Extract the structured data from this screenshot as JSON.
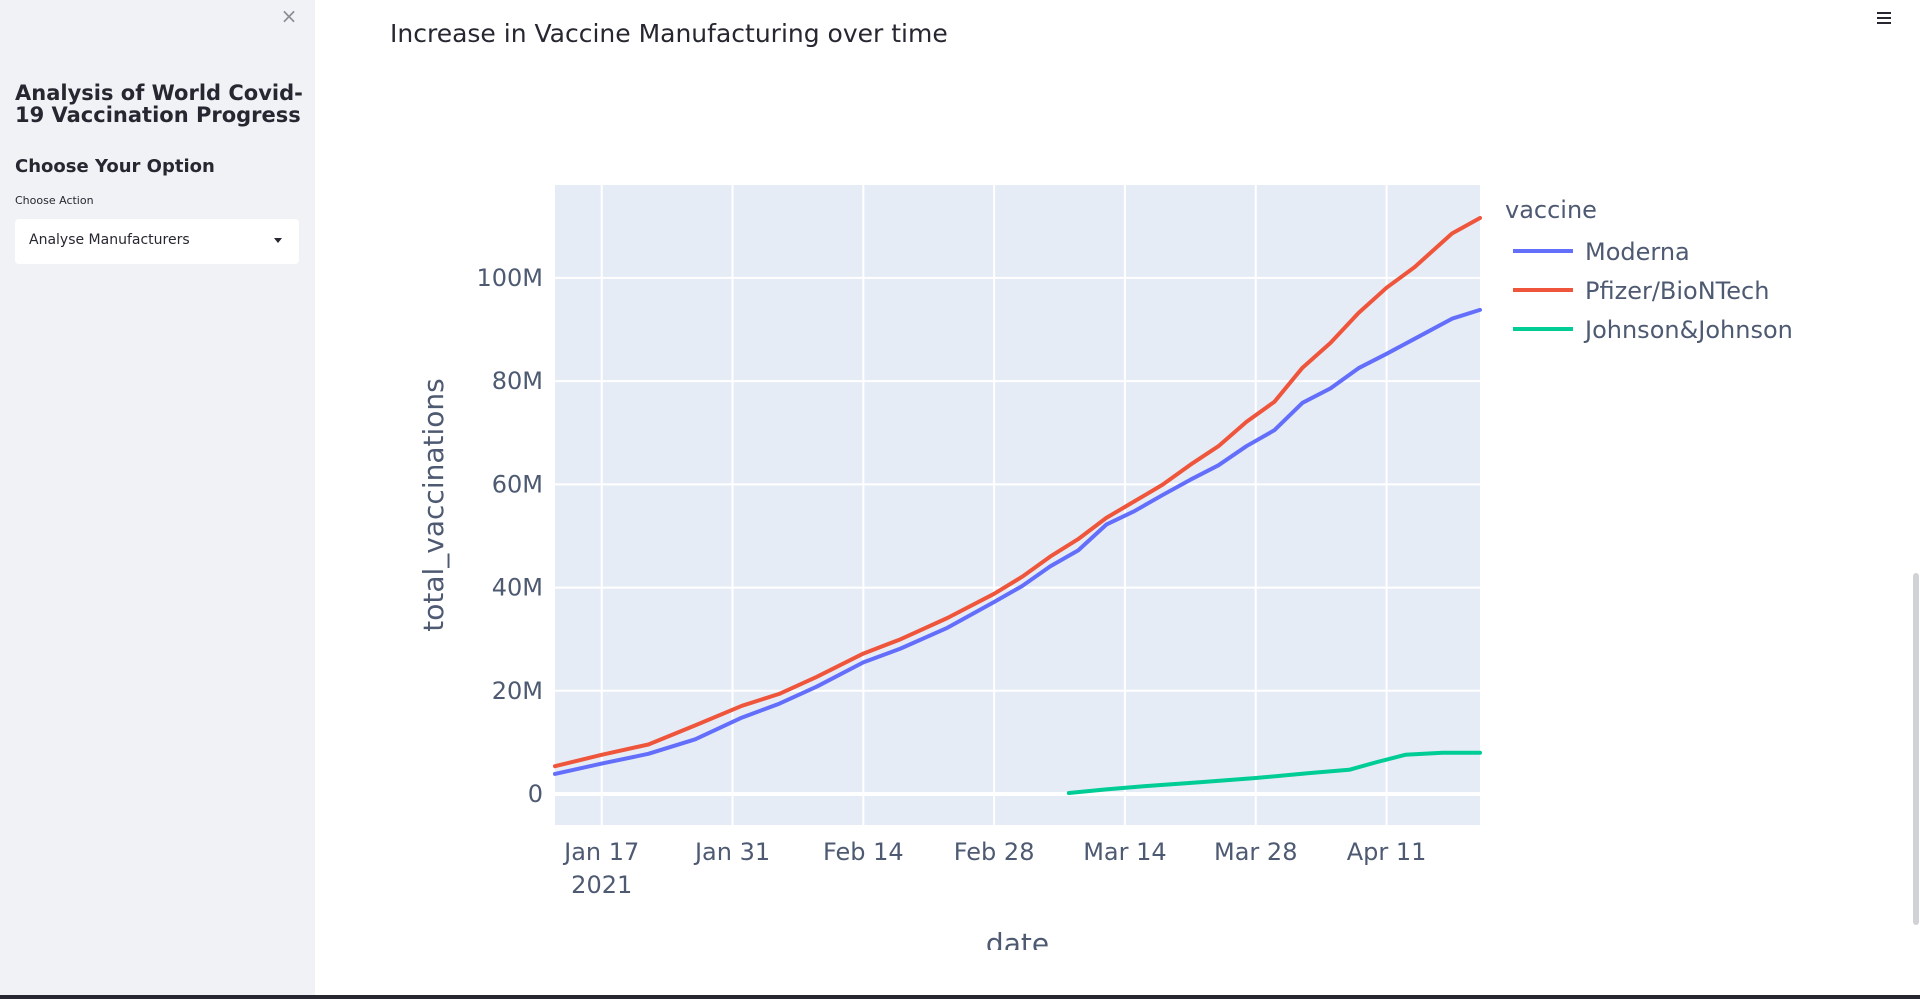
{
  "sidebar": {
    "title": "Analysis of World Covid-19 Vaccination Progress",
    "subheader": "Choose Your Option",
    "select_label": "Choose Action",
    "select_value": "Analyse Manufacturers"
  },
  "main": {
    "title": "Increase in Vaccine Manufacturing over time"
  },
  "colors": {
    "sidebar_bg": "#f0f2f6",
    "plot_bg": "#e5ecf6",
    "moderna": "#636efa",
    "pfizer": "#ef553b",
    "jnj": "#00cc96"
  },
  "icons": {
    "close": "close-icon",
    "menu": "hamburger-menu-icon",
    "caret": "chevron-down-icon"
  },
  "chart_data": {
    "type": "line",
    "xlabel": "date",
    "ylabel": "total_vaccinations",
    "legend_title": "vaccine",
    "legend_position": "right",
    "grid": true,
    "xlim": [
      "2021-01-12",
      "2021-04-21"
    ],
    "ylim": [
      -6000000,
      118000000
    ],
    "x_ticks": [
      {
        "value": "2021-01-17",
        "label": "Jan 17",
        "sublabel": "2021"
      },
      {
        "value": "2021-01-31",
        "label": "Jan 31"
      },
      {
        "value": "2021-02-14",
        "label": "Feb 14"
      },
      {
        "value": "2021-02-28",
        "label": "Feb 28"
      },
      {
        "value": "2021-03-14",
        "label": "Mar 14"
      },
      {
        "value": "2021-03-28",
        "label": "Mar 28"
      },
      {
        "value": "2021-04-11",
        "label": "Apr 11"
      }
    ],
    "y_ticks": [
      {
        "value": 0,
        "label": "0"
      },
      {
        "value": 20000000,
        "label": "20M"
      },
      {
        "value": 40000000,
        "label": "40M"
      },
      {
        "value": 60000000,
        "label": "60M"
      },
      {
        "value": 80000000,
        "label": "80M"
      },
      {
        "value": 100000000,
        "label": "100M"
      }
    ],
    "series": [
      {
        "name": "Moderna",
        "color": "#636efa",
        "points": [
          [
            "2021-01-12",
            3900000
          ],
          [
            "2021-01-17",
            5900000
          ],
          [
            "2021-01-22",
            7800000
          ],
          [
            "2021-01-27",
            10600000
          ],
          [
            "2021-02-01",
            14800000
          ],
          [
            "2021-02-05",
            17500000
          ],
          [
            "2021-02-09",
            20800000
          ],
          [
            "2021-02-14",
            25500000
          ],
          [
            "2021-02-18",
            28200000
          ],
          [
            "2021-02-23",
            32200000
          ],
          [
            "2021-02-28",
            37200000
          ],
          [
            "2021-03-03",
            40300000
          ],
          [
            "2021-03-06",
            44100000
          ],
          [
            "2021-03-09",
            47200000
          ],
          [
            "2021-03-12",
            52200000
          ],
          [
            "2021-03-15",
            54800000
          ],
          [
            "2021-03-18",
            57900000
          ],
          [
            "2021-03-21",
            60900000
          ],
          [
            "2021-03-24",
            63700000
          ],
          [
            "2021-03-27",
            67400000
          ],
          [
            "2021-03-30",
            70500000
          ],
          [
            "2021-04-02",
            75800000
          ],
          [
            "2021-04-05",
            78600000
          ],
          [
            "2021-04-08",
            82500000
          ],
          [
            "2021-04-11",
            85300000
          ],
          [
            "2021-04-14",
            88200000
          ],
          [
            "2021-04-18",
            92100000
          ],
          [
            "2021-04-21",
            93800000
          ]
        ]
      },
      {
        "name": "Pfizer/BioNTech",
        "color": "#ef553b",
        "points": [
          [
            "2021-01-12",
            5400000
          ],
          [
            "2021-01-17",
            7600000
          ],
          [
            "2021-01-22",
            9600000
          ],
          [
            "2021-01-27",
            13300000
          ],
          [
            "2021-02-01",
            17100000
          ],
          [
            "2021-02-05",
            19400000
          ],
          [
            "2021-02-09",
            22700000
          ],
          [
            "2021-02-14",
            27200000
          ],
          [
            "2021-02-18",
            30000000
          ],
          [
            "2021-02-23",
            34100000
          ],
          [
            "2021-02-28",
            38800000
          ],
          [
            "2021-03-03",
            42100000
          ],
          [
            "2021-03-06",
            46000000
          ],
          [
            "2021-03-09",
            49400000
          ],
          [
            "2021-03-12",
            53500000
          ],
          [
            "2021-03-15",
            56700000
          ],
          [
            "2021-03-18",
            59900000
          ],
          [
            "2021-03-21",
            63800000
          ],
          [
            "2021-03-24",
            67400000
          ],
          [
            "2021-03-27",
            72100000
          ],
          [
            "2021-03-30",
            76000000
          ],
          [
            "2021-04-02",
            82600000
          ],
          [
            "2021-04-05",
            87400000
          ],
          [
            "2021-04-08",
            93200000
          ],
          [
            "2021-04-11",
            98100000
          ],
          [
            "2021-04-14",
            102100000
          ],
          [
            "2021-04-18",
            108600000
          ],
          [
            "2021-04-21",
            111600000
          ]
        ]
      },
      {
        "name": "Johnson&Johnson",
        "color": "#00cc96",
        "points": [
          [
            "2021-03-08",
            200000
          ],
          [
            "2021-03-12",
            900000
          ],
          [
            "2021-03-16",
            1500000
          ],
          [
            "2021-03-22",
            2300000
          ],
          [
            "2021-03-28",
            3100000
          ],
          [
            "2021-04-03",
            4100000
          ],
          [
            "2021-04-07",
            4700000
          ],
          [
            "2021-04-10",
            6200000
          ],
          [
            "2021-04-13",
            7600000
          ],
          [
            "2021-04-17",
            8000000
          ],
          [
            "2021-04-21",
            8000000
          ]
        ]
      }
    ]
  }
}
